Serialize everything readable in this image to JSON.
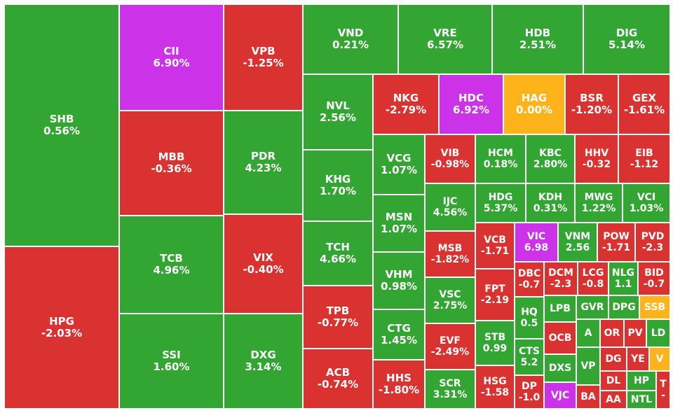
{
  "colors": {
    "up": "#33A532",
    "down": "#D93230",
    "ceiling": "#CC33E8",
    "reference": "#FFB31A"
  },
  "chart_data": {
    "type": "heatmap",
    "tiles": [
      {
        "ticker": "SHB",
        "change": "0.56%",
        "status": "up"
      },
      {
        "ticker": "HPG",
        "change": "-2.03%",
        "status": "down"
      },
      {
        "ticker": "CII",
        "change": "6.90%",
        "status": "ceiling"
      },
      {
        "ticker": "VPB",
        "change": "-1.25%",
        "status": "down"
      },
      {
        "ticker": "MBB",
        "change": "-0.36%",
        "status": "down"
      },
      {
        "ticker": "PDR",
        "change": "4.23%",
        "status": "up"
      },
      {
        "ticker": "TCB",
        "change": "4.96%",
        "status": "up"
      },
      {
        "ticker": "VIX",
        "change": "-0.40%",
        "status": "down"
      },
      {
        "ticker": "SSI",
        "change": "1.60%",
        "status": "up"
      },
      {
        "ticker": "DXG",
        "change": "3.14%",
        "status": "up"
      },
      {
        "ticker": "VND",
        "change": "0.21%",
        "status": "up"
      },
      {
        "ticker": "VRE",
        "change": "6.57%",
        "status": "up"
      },
      {
        "ticker": "HDB",
        "change": "2.51%",
        "status": "up"
      },
      {
        "ticker": "DIG",
        "change": "5.14%",
        "status": "up"
      },
      {
        "ticker": "NVL",
        "change": "2.56%",
        "status": "up"
      },
      {
        "ticker": "KHG",
        "change": "1.70%",
        "status": "up"
      },
      {
        "ticker": "TCH",
        "change": "4.66%",
        "status": "up"
      },
      {
        "ticker": "TPB",
        "change": "-0.77%",
        "status": "down"
      },
      {
        "ticker": "ACB",
        "change": "-0.74%",
        "status": "down"
      },
      {
        "ticker": "NKG",
        "change": "-2.79%",
        "status": "down"
      },
      {
        "ticker": "HDC",
        "change": "6.92%",
        "status": "ceiling"
      },
      {
        "ticker": "HAG",
        "change": "0.00%",
        "status": "reference"
      },
      {
        "ticker": "BSR",
        "change": "-1.20%",
        "status": "down"
      },
      {
        "ticker": "GEX",
        "change": "-1.61%",
        "status": "down"
      },
      {
        "ticker": "VCG",
        "change": "1.07%",
        "status": "up"
      },
      {
        "ticker": "MSN",
        "change": "1.07%",
        "status": "up"
      },
      {
        "ticker": "VHM",
        "change": "0.98%",
        "status": "up"
      },
      {
        "ticker": "CTG",
        "change": "1.45%",
        "status": "up"
      },
      {
        "ticker": "HHS",
        "change": "-1.80%",
        "status": "down"
      },
      {
        "ticker": "VIB",
        "change": "-0.98%",
        "status": "down"
      },
      {
        "ticker": "HCM",
        "change": "0.18%",
        "status": "up"
      },
      {
        "ticker": "KBC",
        "change": "2.80%",
        "status": "up"
      },
      {
        "ticker": "HHV",
        "change": "-0.32",
        "status": "down"
      },
      {
        "ticker": "EIB",
        "change": "-1.12",
        "status": "down"
      },
      {
        "ticker": "IJC",
        "change": "4.56%",
        "status": "up"
      },
      {
        "ticker": "HDG",
        "change": "5.37%",
        "status": "up"
      },
      {
        "ticker": "KDH",
        "change": "0.31%",
        "status": "up"
      },
      {
        "ticker": "MWG",
        "change": "1.22%",
        "status": "up"
      },
      {
        "ticker": "VCI",
        "change": "1.03%",
        "status": "up"
      },
      {
        "ticker": "MSB",
        "change": "-1.82%",
        "status": "down"
      },
      {
        "ticker": "VSC",
        "change": "2.75%",
        "status": "up"
      },
      {
        "ticker": "EVF",
        "change": "-2.49%",
        "status": "down"
      },
      {
        "ticker": "SCR",
        "change": "3.31%",
        "status": "up"
      },
      {
        "ticker": "VCB",
        "change": "-1.71",
        "status": "down"
      },
      {
        "ticker": "FPT",
        "change": "-2.19",
        "status": "down"
      },
      {
        "ticker": "STB",
        "change": "0.99",
        "status": "up"
      },
      {
        "ticker": "HSG",
        "change": "-1.58",
        "status": "down"
      },
      {
        "ticker": "VIC",
        "change": "6.98",
        "status": "ceiling"
      },
      {
        "ticker": "VNM",
        "change": "2.56",
        "status": "up"
      },
      {
        "ticker": "POW",
        "change": "-1.71",
        "status": "down"
      },
      {
        "ticker": "PVD",
        "change": "-2.3",
        "status": "down"
      },
      {
        "ticker": "DBC",
        "change": "-0.7",
        "status": "down"
      },
      {
        "ticker": "DCM",
        "change": "-2.3",
        "status": "down"
      },
      {
        "ticker": "LCG",
        "change": "-0.8",
        "status": "down"
      },
      {
        "ticker": "NLG",
        "change": "1.1",
        "status": "up"
      },
      {
        "ticker": "BID",
        "change": "-0.7",
        "status": "down"
      },
      {
        "ticker": "HQ",
        "change": "0.5",
        "status": "up"
      },
      {
        "ticker": "CTS",
        "change": "5.2",
        "status": "up"
      },
      {
        "ticker": "DP",
        "change": "-1.0",
        "status": "down"
      },
      {
        "ticker": "LPB",
        "change": "",
        "status": "up"
      },
      {
        "ticker": "OCB",
        "change": "",
        "status": "down"
      },
      {
        "ticker": "DXS",
        "change": "",
        "status": "up"
      },
      {
        "ticker": "VJC",
        "change": "",
        "status": "ceiling"
      },
      {
        "ticker": "GVR",
        "change": "",
        "status": "up"
      },
      {
        "ticker": "DPG",
        "change": "",
        "status": "up"
      },
      {
        "ticker": "SSB",
        "change": "",
        "status": "reference"
      },
      {
        "ticker": "A",
        "change": "",
        "status": "up"
      },
      {
        "ticker": "OR",
        "change": "",
        "status": "down"
      },
      {
        "ticker": "PV",
        "change": "",
        "status": "down"
      },
      {
        "ticker": "LD",
        "change": "",
        "status": "up"
      },
      {
        "ticker": "VP",
        "change": "",
        "status": "up"
      },
      {
        "ticker": "DG",
        "change": "",
        "status": "down"
      },
      {
        "ticker": "YE",
        "change": "",
        "status": "down"
      },
      {
        "ticker": "V",
        "change": "",
        "status": "reference"
      },
      {
        "ticker": "DL",
        "change": "",
        "status": "down"
      },
      {
        "ticker": "BA",
        "change": "",
        "status": "down"
      },
      {
        "ticker": "AA",
        "change": "",
        "status": "down"
      },
      {
        "ticker": "HP",
        "change": "",
        "status": "up"
      },
      {
        "ticker": "NTL",
        "change": "",
        "status": "up"
      },
      {
        "ticker": "T",
        "change": "-",
        "status": "down"
      }
    ]
  }
}
